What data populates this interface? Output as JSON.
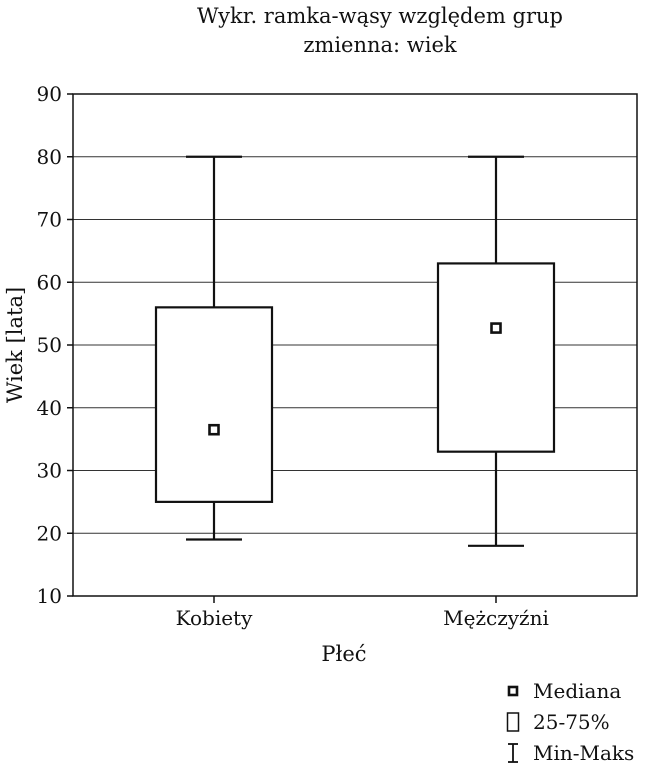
{
  "chart_data": {
    "type": "box",
    "title": "Wykr. ramka-wąsy względem grup",
    "subtitle": "zmienna:  wiek",
    "xlabel": "Płeć",
    "ylabel": "Wiek [lata]",
    "ylim": [
      10,
      90
    ],
    "yticks": [
      "10",
      "20",
      "30",
      "40",
      "50",
      "60",
      "70",
      "80",
      "90"
    ],
    "grid": true,
    "categories": [
      "Kobiety",
      "Mężczyźni"
    ],
    "boxes": [
      {
        "category": "Kobiety",
        "min": 19,
        "q1": 25,
        "median": 36.5,
        "q3": 56,
        "max": 80
      },
      {
        "category": "Mężczyźni",
        "min": 18,
        "q1": 33,
        "median": 52.7,
        "q3": 63,
        "max": 80
      }
    ],
    "legend": {
      "position": "bottom-right",
      "items": [
        {
          "label": "Mediana",
          "symbol": "median-square"
        },
        {
          "label": "25-75%",
          "symbol": "box"
        },
        {
          "label": "Min-Maks",
          "symbol": "whisker"
        }
      ]
    },
    "colors": {
      "line": "#111111",
      "grid": "#333333",
      "background": "#ffffff"
    }
  }
}
